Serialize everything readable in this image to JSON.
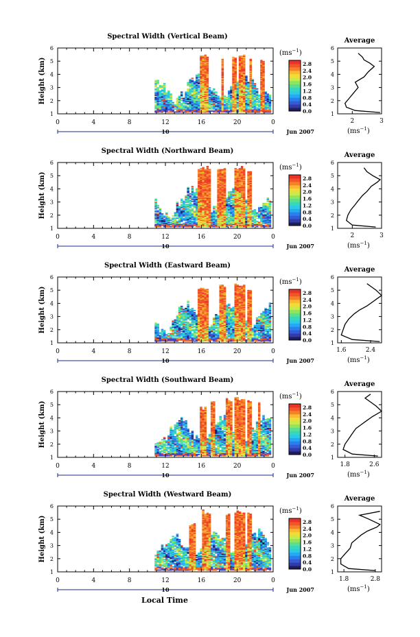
{
  "figure": {
    "x_axis_title": "Local Time",
    "date_label": "Jun 2007",
    "date_day": "10",
    "colorbar_unit": "(ms",
    "colorbar_unit_exp": "−1",
    "colorbar_unit_close": ")",
    "avg_unit": "(ms",
    "avg_unit_exp": "−1",
    "avg_unit_close": ")"
  },
  "chart_data": [
    {
      "type": "heatmap",
      "title": "Spectral Width (Vertical Beam)",
      "ylabel": "Height (km)",
      "xlabel": "Local Time",
      "x_ticks": [
        "0",
        "4",
        "8",
        "12",
        "16",
        "20",
        "0"
      ],
      "y_ticks": [
        "1",
        "2",
        "3",
        "4",
        "5",
        "6"
      ],
      "xlim": [
        0,
        24
      ],
      "ylim": [
        1,
        6
      ],
      "data_x_range": [
        10.8,
        23.6
      ],
      "rain_columns": [
        [
          15.8,
          16.7,
          5.6
        ],
        [
          18.0,
          18.4,
          5.2
        ],
        [
          19.2,
          19.8,
          5.5
        ],
        [
          20.0,
          20.8,
          5.5
        ],
        [
          21.2,
          21.5,
          5.4
        ],
        [
          22.5,
          22.8,
          5.1
        ]
      ],
      "colorbar": {
        "label": "(ms−1)",
        "ticks": [
          "0.0",
          "0.4",
          "0.8",
          "1.2",
          "1.6",
          "2.0",
          "2.4",
          "2.8"
        ],
        "range": [
          0.0,
          3.0
        ]
      },
      "average_profile": {
        "title": "Average",
        "xlabel": "(ms−1)",
        "x_ticks": [
          "2",
          "3"
        ],
        "xlim": [
          1.5,
          3.0
        ],
        "y_ticks": [
          "1",
          "2",
          "3",
          "4",
          "5",
          "6"
        ],
        "points": [
          [
            2.95,
            1.1
          ],
          [
            2.1,
            1.25
          ],
          [
            1.8,
            1.5
          ],
          [
            1.75,
            1.8
          ],
          [
            1.9,
            2.2
          ],
          [
            2.05,
            2.6
          ],
          [
            2.2,
            3.0
          ],
          [
            2.1,
            3.4
          ],
          [
            2.4,
            3.8
          ],
          [
            2.55,
            4.2
          ],
          [
            2.75,
            4.6
          ],
          [
            2.6,
            4.85
          ],
          [
            2.4,
            5.1
          ],
          [
            2.35,
            5.3
          ],
          [
            2.2,
            5.6
          ]
        ]
      }
    },
    {
      "type": "heatmap",
      "title": "Spectral Width (Northward Beam)",
      "ylabel": "Height (km)",
      "xlabel": "Local Time",
      "x_ticks": [
        "0",
        "4",
        "8",
        "12",
        "16",
        "20",
        "0"
      ],
      "y_ticks": [
        "1",
        "2",
        "3",
        "4",
        "5",
        "6"
      ],
      "xlim": [
        0,
        24
      ],
      "ylim": [
        1,
        6
      ],
      "data_x_range": [
        10.8,
        23.6
      ],
      "rain_columns": [
        [
          15.5,
          17.0,
          5.7
        ],
        [
          17.6,
          18.6,
          5.7
        ],
        [
          19.5,
          20.8,
          5.7
        ],
        [
          21.0,
          21.4,
          5.5
        ]
      ],
      "colorbar": {
        "label": "(ms−1)",
        "ticks": [
          "0.0",
          "0.4",
          "0.8",
          "1.2",
          "1.6",
          "2.0",
          "2.4",
          "2.8"
        ],
        "range": [
          0.0,
          3.0
        ]
      },
      "average_profile": {
        "title": "Average",
        "xlabel": "(ms−1)",
        "x_ticks": [
          "2",
          "3"
        ],
        "xlim": [
          1.5,
          3.0
        ],
        "y_ticks": [
          "1",
          "2",
          "3",
          "4",
          "5",
          "6"
        ],
        "points": [
          [
            2.8,
            1.1
          ],
          [
            2.0,
            1.25
          ],
          [
            1.8,
            1.6
          ],
          [
            1.85,
            2.0
          ],
          [
            1.95,
            2.4
          ],
          [
            2.1,
            2.8
          ],
          [
            2.2,
            3.1
          ],
          [
            2.35,
            3.5
          ],
          [
            2.5,
            3.8
          ],
          [
            2.65,
            4.2
          ],
          [
            2.85,
            4.5
          ],
          [
            2.95,
            4.7
          ],
          [
            2.7,
            5.0
          ],
          [
            2.5,
            5.3
          ],
          [
            2.4,
            5.6
          ]
        ]
      }
    },
    {
      "type": "heatmap",
      "title": "Spectral Width (Eastward Beam)",
      "ylabel": "Height (km)",
      "xlabel": "Local Time",
      "x_ticks": [
        "0",
        "4",
        "8",
        "12",
        "16",
        "20",
        "0"
      ],
      "y_ticks": [
        "1",
        "2",
        "3",
        "4",
        "5",
        "6"
      ],
      "xlim": [
        0,
        24
      ],
      "ylim": [
        1,
        6
      ],
      "data_x_range": [
        10.8,
        23.6
      ],
      "rain_columns": [
        [
          15.6,
          16.6,
          5.3
        ],
        [
          17.8,
          18.6,
          5.5
        ],
        [
          19.5,
          20.7,
          5.5
        ],
        [
          21.0,
          21.5,
          5.2
        ]
      ],
      "colorbar": {
        "label": "(ms−1)",
        "ticks": [
          "0.0",
          "0.4",
          "0.8",
          "1.2",
          "1.6",
          "2.0",
          "2.4",
          "2.8"
        ],
        "range": [
          0.0,
          3.0
        ]
      },
      "average_profile": {
        "title": "Average",
        "xlabel": "(ms−1)",
        "x_ticks": [
          "1.6",
          "2.4"
        ],
        "xlim": [
          1.5,
          2.7
        ],
        "y_ticks": [
          "1",
          "2",
          "3",
          "4",
          "5",
          "6"
        ],
        "points": [
          [
            2.65,
            1.1
          ],
          [
            1.9,
            1.25
          ],
          [
            1.6,
            1.6
          ],
          [
            1.65,
            2.0
          ],
          [
            1.7,
            2.4
          ],
          [
            1.8,
            2.8
          ],
          [
            1.95,
            3.2
          ],
          [
            2.1,
            3.5
          ],
          [
            2.3,
            3.8
          ],
          [
            2.45,
            4.1
          ],
          [
            2.6,
            4.4
          ],
          [
            2.7,
            4.6
          ],
          [
            2.55,
            5.0
          ],
          [
            2.45,
            5.2
          ],
          [
            2.3,
            5.5
          ]
        ]
      }
    },
    {
      "type": "heatmap",
      "title": "Spectral Width (Southward Beam)",
      "ylabel": "Height (km)",
      "xlabel": "Local Time",
      "x_ticks": [
        "0",
        "4",
        "8",
        "12",
        "16",
        "20",
        "0"
      ],
      "y_ticks": [
        "1",
        "2",
        "3",
        "4",
        "5",
        "6"
      ],
      "xlim": [
        0,
        24
      ],
      "ylim": [
        1,
        6
      ],
      "data_x_range": [
        10.8,
        23.6
      ],
      "rain_columns": [
        [
          15.8,
          16.4,
          4.9
        ],
        [
          17.0,
          17.4,
          5.3
        ],
        [
          18.6,
          19.2,
          5.5
        ],
        [
          19.5,
          20.8,
          5.6
        ],
        [
          21.0,
          21.4,
          5.5
        ],
        [
          22.2,
          22.5,
          5.3
        ]
      ],
      "colorbar": {
        "label": "(ms−1)",
        "ticks": [
          "0.0",
          "0.4",
          "0.8",
          "1.2",
          "1.6",
          "2.0",
          "2.4",
          "2.8"
        ],
        "range": [
          0.0,
          3.0
        ]
      },
      "average_profile": {
        "title": "Average",
        "xlabel": "(ms−1)",
        "x_ticks": [
          "1.8",
          "2.6"
        ],
        "xlim": [
          1.6,
          2.8
        ],
        "y_ticks": [
          "1",
          "2",
          "3",
          "4",
          "5",
          "6"
        ],
        "points": [
          [
            2.7,
            1.1
          ],
          [
            2.0,
            1.25
          ],
          [
            1.75,
            1.6
          ],
          [
            1.8,
            2.0
          ],
          [
            1.9,
            2.4
          ],
          [
            2.0,
            2.8
          ],
          [
            2.1,
            3.2
          ],
          [
            2.25,
            3.5
          ],
          [
            2.4,
            3.8
          ],
          [
            2.55,
            4.1
          ],
          [
            2.8,
            4.5
          ],
          [
            2.65,
            4.9
          ],
          [
            2.5,
            5.2
          ],
          [
            2.35,
            5.5
          ],
          [
            2.5,
            5.8
          ]
        ]
      }
    },
    {
      "type": "heatmap",
      "title": "Spectral Width (Westward Beam)",
      "ylabel": "Height (km)",
      "xlabel": "Local Time",
      "x_ticks": [
        "0",
        "4",
        "8",
        "12",
        "16",
        "20",
        "0"
      ],
      "y_ticks": [
        "1",
        "2",
        "3",
        "4",
        "5",
        "6"
      ],
      "xlim": [
        0,
        24
      ],
      "ylim": [
        1,
        6
      ],
      "data_x_range": [
        10.8,
        23.6
      ],
      "rain_columns": [
        [
          14.5,
          15.2,
          4.7
        ],
        [
          16.0,
          16.8,
          5.7
        ],
        [
          18.5,
          19.0,
          5.6
        ],
        [
          19.6,
          20.8,
          5.7
        ],
        [
          21.0,
          21.5,
          5.5
        ]
      ],
      "colorbar": {
        "label": "(ms−1)",
        "ticks": [
          "0.0",
          "0.4",
          "0.8",
          "1.2",
          "1.6",
          "2.0",
          "2.4",
          "2.8"
        ],
        "range": [
          0.0,
          3.0
        ]
      },
      "average_profile": {
        "title": "Average",
        "xlabel": "(ms−1)",
        "x_ticks": [
          "1.8",
          "2.8"
        ],
        "xlim": [
          1.6,
          3.0
        ],
        "y_ticks": [
          "1",
          "2",
          "3",
          "4",
          "5",
          "6"
        ],
        "points": [
          [
            2.8,
            1.1
          ],
          [
            1.95,
            1.25
          ],
          [
            1.7,
            1.6
          ],
          [
            1.7,
            2.0
          ],
          [
            1.85,
            2.4
          ],
          [
            2.0,
            2.8
          ],
          [
            2.05,
            3.2
          ],
          [
            2.2,
            3.5
          ],
          [
            2.35,
            3.8
          ],
          [
            2.55,
            4.1
          ],
          [
            2.85,
            4.4
          ],
          [
            2.95,
            4.6
          ],
          [
            2.6,
            5.0
          ],
          [
            2.3,
            5.3
          ],
          [
            2.95,
            5.6
          ]
        ]
      }
    }
  ]
}
